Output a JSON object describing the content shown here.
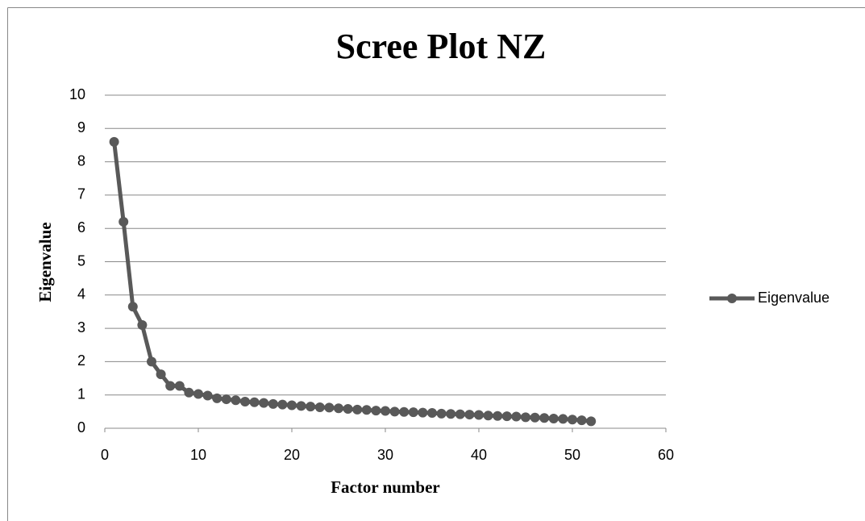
{
  "chart_data": {
    "type": "line",
    "title": "Scree Plot NZ",
    "xlabel": "Factor number",
    "ylabel": "Eigenvalue",
    "x": [
      1,
      2,
      3,
      4,
      5,
      6,
      7,
      8,
      9,
      10,
      11,
      12,
      13,
      14,
      15,
      16,
      17,
      18,
      19,
      20,
      21,
      22,
      23,
      24,
      25,
      26,
      27,
      28,
      29,
      30,
      31,
      32,
      33,
      34,
      35,
      36,
      37,
      38,
      39,
      40,
      41,
      42,
      43,
      44,
      45,
      46,
      47,
      48,
      49,
      50,
      51,
      52
    ],
    "series": [
      {
        "name": "Eigenvalue",
        "color": "#595959",
        "values": [
          8.6,
          6.2,
          3.65,
          3.1,
          2.0,
          1.62,
          1.27,
          1.27,
          1.07,
          1.03,
          0.98,
          0.9,
          0.87,
          0.84,
          0.8,
          0.78,
          0.76,
          0.73,
          0.71,
          0.69,
          0.67,
          0.65,
          0.63,
          0.62,
          0.6,
          0.58,
          0.56,
          0.55,
          0.53,
          0.52,
          0.5,
          0.49,
          0.48,
          0.47,
          0.46,
          0.44,
          0.43,
          0.42,
          0.41,
          0.4,
          0.38,
          0.37,
          0.36,
          0.35,
          0.33,
          0.32,
          0.31,
          0.29,
          0.28,
          0.26,
          0.24,
          0.21
        ]
      }
    ],
    "xlim": [
      0,
      60
    ],
    "xticks": [
      0,
      10,
      20,
      30,
      40,
      50,
      60
    ],
    "ylim": [
      0,
      10
    ],
    "yticks": [
      0,
      1,
      2,
      3,
      4,
      5,
      6,
      7,
      8,
      9,
      10
    ],
    "grid": true,
    "legend": "right"
  }
}
